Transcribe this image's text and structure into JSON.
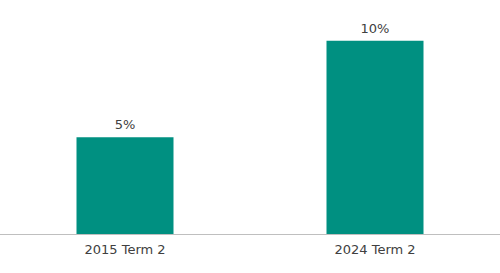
{
  "chart_data": {
    "type": "bar",
    "categories": [
      "2015 Term 2",
      "2024 Term 2"
    ],
    "values": [
      5,
      10
    ],
    "value_labels": [
      "5%",
      "10%"
    ],
    "data_labels": true,
    "color": "#009081",
    "ylim": [
      0,
      12
    ],
    "yticks": [
      0,
      12
    ],
    "grid": false,
    "tick_labels": "x"
  }
}
